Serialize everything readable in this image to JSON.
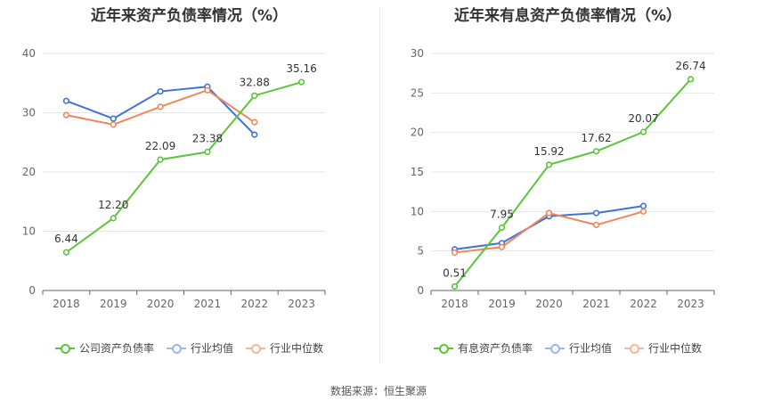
{
  "source_label": "数据来源：恒生聚源",
  "chart_data": [
    {
      "type": "line",
      "title": "近年来资产负债率情况（%）",
      "x": [
        "2018",
        "2019",
        "2020",
        "2021",
        "2022",
        "2023"
      ],
      "ylim": [
        0,
        40
      ],
      "yticks": [
        "0",
        "10",
        "20",
        "30",
        "40"
      ],
      "series": [
        {
          "name": "公司资产负债率",
          "color": "#5cc63b",
          "values": [
            6.44,
            12.2,
            22.09,
            23.38,
            32.88,
            35.16
          ],
          "labels": [
            "6.44",
            "12.20",
            "22.09",
            "23.38",
            "32.88",
            "35.16"
          ]
        },
        {
          "name": "行业均值",
          "color": "#3f72d6",
          "values": [
            32.0,
            29.0,
            33.6,
            34.4,
            26.3,
            null
          ]
        },
        {
          "name": "行业中位数",
          "color": "#f0875a",
          "values": [
            29.6,
            28.0,
            31.0,
            33.8,
            28.4,
            null
          ]
        }
      ],
      "grid": true,
      "legend_position": "bottom"
    },
    {
      "type": "line",
      "title": "近年来有息资产负债率情况（%）",
      "x": [
        "2018",
        "2019",
        "2020",
        "2021",
        "2022",
        "2023"
      ],
      "ylim": [
        0,
        30
      ],
      "yticks": [
        "0",
        "5",
        "10",
        "15",
        "20",
        "25",
        "30"
      ],
      "series": [
        {
          "name": "有息资产负债率",
          "color": "#5cc63b",
          "values": [
            0.51,
            7.95,
            15.92,
            17.62,
            20.07,
            26.74
          ],
          "labels": [
            "0.51",
            "7.95",
            "15.92",
            "17.62",
            "20.07",
            "26.74"
          ]
        },
        {
          "name": "行业均值",
          "color": "#3f72d6",
          "values": [
            5.2,
            6.0,
            9.4,
            9.8,
            10.7,
            null
          ]
        },
        {
          "name": "行业中位数",
          "color": "#f0875a",
          "values": [
            4.8,
            5.5,
            9.8,
            8.3,
            10.0,
            null
          ]
        }
      ],
      "grid": true,
      "legend_position": "bottom"
    }
  ]
}
